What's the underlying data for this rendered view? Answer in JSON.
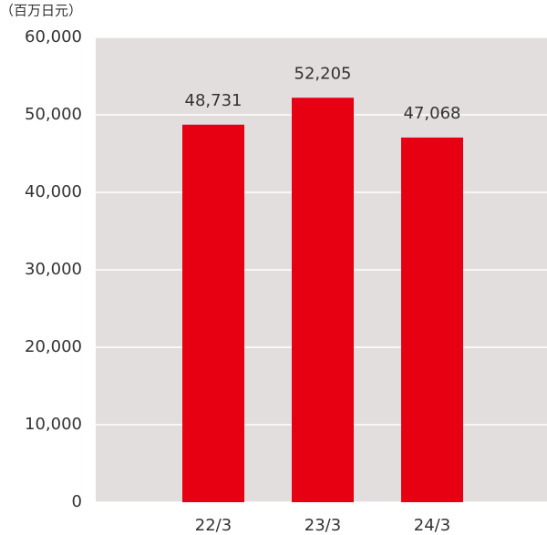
{
  "chart_data": {
    "type": "bar",
    "unit_label": "（百万日元）",
    "categories": [
      "22/3",
      "23/3",
      "24/3"
    ],
    "values": [
      48731,
      52205,
      47068
    ],
    "value_labels": [
      "48,731",
      "52,205",
      "47,068"
    ],
    "color": "#e60012",
    "ylim": [
      0,
      60000
    ],
    "yticks": [
      0,
      {
        "value": 10000,
        "label": "10,000"
      },
      {
        "value": 20000,
        "label": "20,000"
      },
      {
        "value": 30000,
        "label": "30,000"
      },
      {
        "value": 40000,
        "label": "40,000"
      },
      {
        "value": 50000,
        "label": "50,000"
      },
      {
        "value": 60000,
        "label": "60,000"
      }
    ],
    "grid": true
  }
}
